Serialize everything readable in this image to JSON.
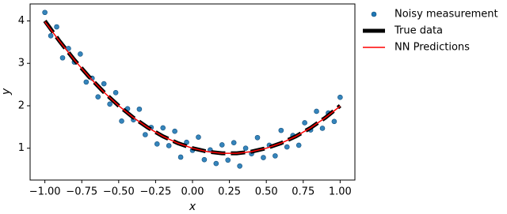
{
  "chart_data": {
    "type": "scatter",
    "xlabel": "x",
    "ylabel": "y",
    "xlim": [
      -1.1,
      1.1
    ],
    "ylim": [
      0.25,
      4.4
    ],
    "xticks": [
      {
        "value": -1,
        "label": "−1.00"
      },
      {
        "value": -0.75,
        "label": "−0.75"
      },
      {
        "value": -0.5,
        "label": "−0.50"
      },
      {
        "value": -0.25,
        "label": "−0.25"
      },
      {
        "value": 0,
        "label": "0.00"
      },
      {
        "value": 0.25,
        "label": "0.25"
      },
      {
        "value": 0.5,
        "label": "0.50"
      },
      {
        "value": 0.75,
        "label": "0.75"
      },
      {
        "value": 1,
        "label": "1.00"
      }
    ],
    "yticks": [
      1,
      2,
      3,
      4
    ],
    "grid": false,
    "legend": "outside right",
    "series": [
      {
        "name": "Noisy measurement",
        "type": "scatter",
        "color": "#1f77b4",
        "x": [
          -1,
          -0.96,
          -0.92,
          -0.88,
          -0.84,
          -0.8,
          -0.76,
          -0.72,
          -0.68,
          -0.64,
          -0.6,
          -0.56,
          -0.52,
          -0.48,
          -0.44,
          -0.4,
          -0.36,
          -0.32,
          -0.28,
          -0.24,
          -0.2,
          -0.16,
          -0.12,
          -0.08,
          -0.04,
          0,
          0.04,
          0.08,
          0.12,
          0.16,
          0.2,
          0.24,
          0.28,
          0.32,
          0.36,
          0.4,
          0.44,
          0.48,
          0.52,
          0.56,
          0.6,
          0.64,
          0.68,
          0.72,
          0.76,
          0.8,
          0.84,
          0.88,
          0.92,
          0.96,
          1
        ],
        "values": [
          4.2,
          3.65,
          3.86,
          3.13,
          3.35,
          3.03,
          3.22,
          2.56,
          2.65,
          2.21,
          2.52,
          2.04,
          2.31,
          1.64,
          1.93,
          1.67,
          1.92,
          1.32,
          1.49,
          1.1,
          1.48,
          1.06,
          1.4,
          0.79,
          1.14,
          0.95,
          1.26,
          0.73,
          0.96,
          0.64,
          1.08,
          0.72,
          1.13,
          0.58,
          1.0,
          0.87,
          1.25,
          0.78,
          1.07,
          0.82,
          1.42,
          1.03,
          1.3,
          1.07,
          1.6,
          1.43,
          1.87,
          1.47,
          1.83,
          1.63,
          2.2
        ]
      },
      {
        "name": "True data",
        "type": "line",
        "linestyle": "dashed",
        "color": "#000000",
        "x": [
          -1,
          -0.9,
          -0.8,
          -0.7,
          -0.6,
          -0.5,
          -0.4,
          -0.3,
          -0.2,
          -0.1,
          0,
          0.1,
          0.2,
          0.3,
          0.4,
          0.5,
          0.6,
          0.7,
          0.8,
          0.9,
          1
        ],
        "values": [
          4,
          3.52,
          3.08,
          2.68,
          2.32,
          2,
          1.72,
          1.48,
          1.28,
          1.12,
          1,
          0.92,
          0.88,
          0.88,
          0.92,
          1,
          1.12,
          1.28,
          1.48,
          1.72,
          2
        ]
      },
      {
        "name": "NN Predictions",
        "type": "line",
        "linestyle": "solid",
        "color": "#ff0000",
        "x": [
          -1,
          -0.9,
          -0.8,
          -0.7,
          -0.6,
          -0.5,
          -0.4,
          -0.3,
          -0.2,
          -0.1,
          0,
          0.1,
          0.2,
          0.3,
          0.4,
          0.5,
          0.6,
          0.7,
          0.8,
          0.9,
          1
        ],
        "values": [
          3.98,
          3.52,
          3.08,
          2.68,
          2.32,
          2.0,
          1.72,
          1.48,
          1.28,
          1.12,
          1.0,
          0.92,
          0.88,
          0.88,
          0.92,
          1.0,
          1.12,
          1.28,
          1.48,
          1.72,
          1.99
        ]
      }
    ]
  }
}
